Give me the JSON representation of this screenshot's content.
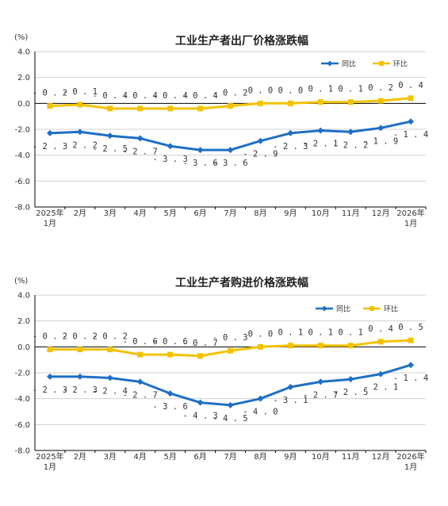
{
  "chart_data": [
    {
      "type": "line",
      "title": "工业生产者出厂价格涨跌幅",
      "unit": "(%)",
      "categories": [
        [
          "2025年",
          "1月"
        ],
        [
          "2月"
        ],
        [
          "3月"
        ],
        [
          "4月"
        ],
        [
          "5月"
        ],
        [
          "6月"
        ],
        [
          "7月"
        ],
        [
          "8月"
        ],
        [
          "9月"
        ],
        [
          "10月"
        ],
        [
          "11月"
        ],
        [
          "12月"
        ],
        [
          "2026年",
          "1月"
        ]
      ],
      "ylim": [
        -8.0,
        4.0
      ],
      "yticks": [
        "4.0",
        "2.0",
        "0.0",
        "-2.0",
        "-4.0",
        "-6.0",
        "-8.0"
      ],
      "legend_position": "top-right",
      "series": [
        {
          "name": "同比",
          "color": "#1f6fc5",
          "marker": "diamond",
          "label_position": "below",
          "values": [
            -2.3,
            -2.2,
            -2.5,
            -2.7,
            -3.3,
            -3.6,
            -3.6,
            -2.9,
            -2.3,
            -2.1,
            -2.2,
            -1.9,
            -1.4
          ],
          "labels": [
            "-2.3",
            "-2.2",
            "-2.5",
            "-2.7",
            "-3.3",
            "-3.6",
            "-3.6",
            "-2.9",
            "-2.3",
            "-2.1",
            "-2.2",
            "-1.9",
            "-1.4"
          ]
        },
        {
          "name": "环比",
          "color": "#f2c200",
          "marker": "square",
          "label_position": "above",
          "values": [
            -0.2,
            -0.1,
            -0.4,
            -0.4,
            -0.4,
            -0.4,
            -0.2,
            0.0,
            0.0,
            0.1,
            0.1,
            0.2,
            0.4
          ],
          "labels": [
            "-0.2",
            "-0.1",
            "-0.4",
            "-0.4",
            "-0.4",
            "-0.4",
            "-0.2",
            "0.0",
            "0.0",
            "0.1",
            "0.1",
            "0.2",
            "0.4"
          ]
        }
      ]
    },
    {
      "type": "line",
      "title": "工业生产者购进价格涨跌幅",
      "unit": "(%)",
      "categories": [
        [
          "2025年",
          "1月"
        ],
        [
          "2月"
        ],
        [
          "3月"
        ],
        [
          "4月"
        ],
        [
          "5月"
        ],
        [
          "6月"
        ],
        [
          "7月"
        ],
        [
          "8月"
        ],
        [
          "9月"
        ],
        [
          "10月"
        ],
        [
          "11月"
        ],
        [
          "12月"
        ],
        [
          "2026年",
          "1月"
        ]
      ],
      "ylim": [
        -8.0,
        4.0
      ],
      "yticks": [
        "4.0",
        "2.0",
        "0.0",
        "-2.0",
        "-4.0",
        "-6.0",
        "-8.0"
      ],
      "legend_position": "top-right",
      "series": [
        {
          "name": "同比",
          "color": "#1f6fc5",
          "marker": "diamond",
          "label_position": "below",
          "values": [
            -2.3,
            -2.3,
            -2.4,
            -2.7,
            -3.6,
            -4.3,
            -4.5,
            -4.0,
            -3.1,
            -2.7,
            -2.5,
            -2.1,
            -1.4
          ],
          "labels": [
            "-2.3",
            "-2.3",
            "-2.4",
            "-2.7",
            "-3.6",
            "-4.3",
            "-4.5",
            "-4.0",
            "-3.1",
            "-2.7",
            "-2.5",
            "-2.1",
            "-1.4"
          ]
        },
        {
          "name": "环比",
          "color": "#f2c200",
          "marker": "square",
          "label_position": "above",
          "values": [
            -0.2,
            -0.2,
            -0.2,
            -0.6,
            -0.6,
            -0.7,
            -0.3,
            0.0,
            0.1,
            0.1,
            0.1,
            0.4,
            0.5
          ],
          "labels": [
            "-0.2",
            "-0.2",
            "-0.2",
            "-0.6",
            "-0.6",
            "-0.7",
            "-0.3",
            "0.0",
            "0.1",
            "0.1",
            "0.1",
            "0.4",
            "0.5"
          ]
        }
      ]
    }
  ]
}
